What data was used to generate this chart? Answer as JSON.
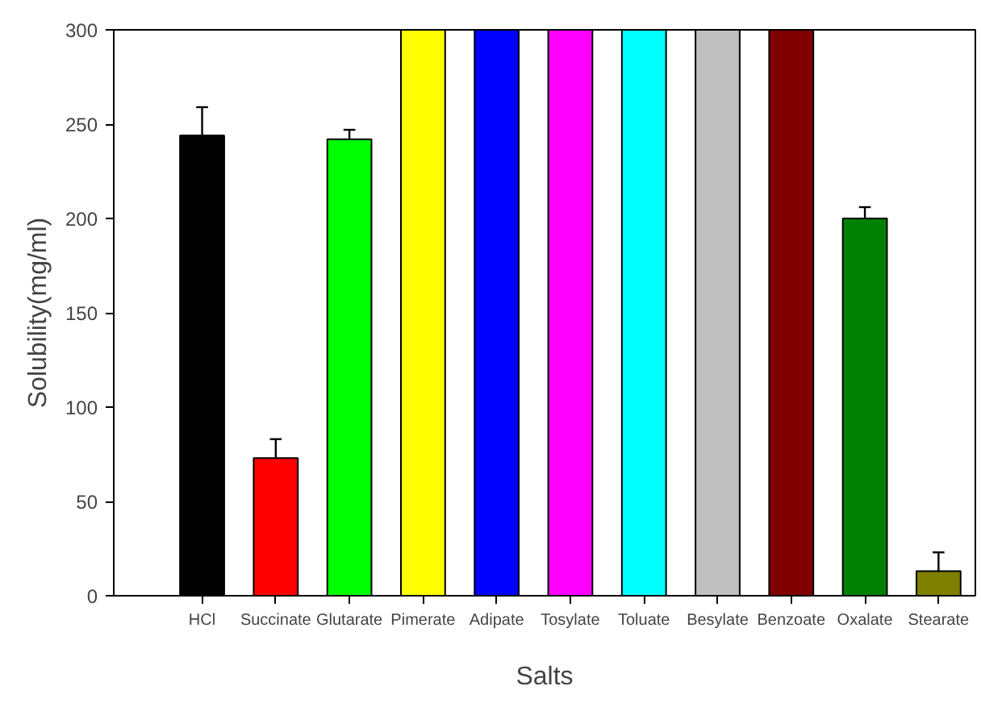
{
  "chart_data": {
    "type": "bar",
    "xlabel": "Salts",
    "ylabel": "Solubility(mg/ml)",
    "categories": [
      "HCl",
      "Succinate",
      "Glutarate",
      "Pimerate",
      "Adipate",
      "Tosylate",
      "Toluate",
      "Besylate",
      "Benzoate",
      "Oxalate",
      "Stearate"
    ],
    "values": [
      244,
      73,
      242,
      300,
      300,
      300,
      300,
      300,
      300,
      200,
      13
    ],
    "colors": [
      "#000000",
      "#ff0000",
      "#00ff00",
      "#ffff00",
      "#0000ff",
      "#ff00ff",
      "#00ffff",
      "#c0c0c0",
      "#800000",
      "#008000",
      "#808000"
    ],
    "errors": [
      [
        244,
        259
      ],
      [
        73,
        83
      ],
      [
        242,
        247
      ],
      null,
      null,
      null,
      null,
      null,
      null,
      [
        200,
        206
      ],
      [
        13,
        23
      ]
    ],
    "ylim": [
      0,
      300
    ],
    "yticks": [
      0,
      50,
      100,
      150,
      200,
      250,
      300
    ],
    "grid": false
  }
}
